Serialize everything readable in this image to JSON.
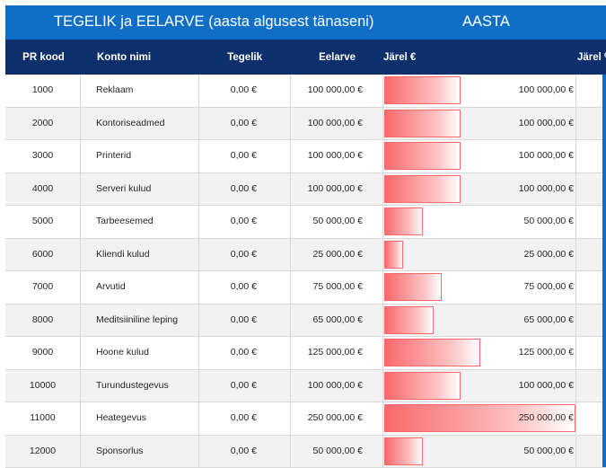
{
  "banner": {
    "title": "TEGELIK ja EELARVE (aasta algusest tänaseni)",
    "period": "AASTA"
  },
  "columns": {
    "code": "PR kood",
    "name": "Konto nimi",
    "actual": "Tegelik",
    "budget": "Eelarve",
    "remaining": "Järel €",
    "remaining_pct": "Järel %"
  },
  "rows": [
    {
      "code": "1000",
      "name": "Reklaam",
      "actual": "0,00 €",
      "budget": "100 000,00 €",
      "remaining": "100 000,00 €",
      "remaining_value": 100000
    },
    {
      "code": "2000",
      "name": "Kontoriseadmed",
      "actual": "0,00 €",
      "budget": "100 000,00 €",
      "remaining": "100 000,00 €",
      "remaining_value": 100000
    },
    {
      "code": "3000",
      "name": "Printerid",
      "actual": "0,00 €",
      "budget": "100 000,00 €",
      "remaining": "100 000,00 €",
      "remaining_value": 100000
    },
    {
      "code": "4000",
      "name": "Serveri kulud",
      "actual": "0,00 €",
      "budget": "100 000,00 €",
      "remaining": "100 000,00 €",
      "remaining_value": 100000
    },
    {
      "code": "5000",
      "name": "Tarbeesemed",
      "actual": "0,00 €",
      "budget": "50 000,00 €",
      "remaining": "50 000,00 €",
      "remaining_value": 50000
    },
    {
      "code": "6000",
      "name": "Kliendi kulud",
      "actual": "0,00 €",
      "budget": "25 000,00 €",
      "remaining": "25 000,00 €",
      "remaining_value": 25000
    },
    {
      "code": "7000",
      "name": "Arvutid",
      "actual": "0,00 €",
      "budget": "75 000,00 €",
      "remaining": "75 000,00 €",
      "remaining_value": 75000
    },
    {
      "code": "8000",
      "name": "Meditsiiniline leping",
      "actual": "0,00 €",
      "budget": "65 000,00 €",
      "remaining": "65 000,00 €",
      "remaining_value": 65000
    },
    {
      "code": "9000",
      "name": "Hoone kulud",
      "actual": "0,00 €",
      "budget": "125 000,00 €",
      "remaining": "125 000,00 €",
      "remaining_value": 125000
    },
    {
      "code": "10000",
      "name": "Turundustegevus",
      "actual": "0,00 €",
      "budget": "100 000,00 €",
      "remaining": "100 000,00 €",
      "remaining_value": 100000
    },
    {
      "code": "11000",
      "name": "Heategevus",
      "actual": "0,00 €",
      "budget": "250 000,00 €",
      "remaining": "250 000,00 €",
      "remaining_value": 250000
    },
    {
      "code": "12000",
      "name": "Sponsorlus",
      "actual": "0,00 €",
      "budget": "50 000,00 €",
      "remaining": "50 000,00 €",
      "remaining_value": 50000
    }
  ],
  "colors": {
    "banner": "#0f6fc6",
    "header": "#0d2f6b",
    "databar": "#f8696b"
  }
}
